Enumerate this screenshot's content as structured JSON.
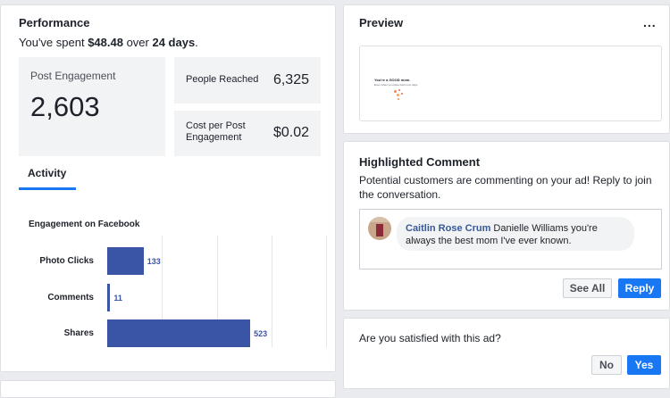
{
  "performance": {
    "title": "Performance",
    "spent_prefix": "You've spent ",
    "spent_amount": "$48.48",
    "spent_mid": " over ",
    "spent_days": "24 days",
    "spent_suffix": ".",
    "post_engagement_label": "Post Engagement",
    "post_engagement_value": "2,603",
    "people_reached_label": "People Reached",
    "people_reached_value": "6,325",
    "cost_label": "Cost per Post Engagement",
    "cost_value": "$0.02",
    "tab_activity": "Activity",
    "chart_title": "Engagement on Facebook"
  },
  "chart_data": {
    "type": "bar",
    "title": "Engagement on Facebook",
    "categories": [
      "Photo Clicks",
      "Comments",
      "Shares"
    ],
    "values": [
      133,
      11,
      523
    ],
    "xlim": [
      0,
      800
    ],
    "orientation": "horizontal",
    "grid": true
  },
  "preview": {
    "title": "Preview",
    "more": "...",
    "thumb_line1": "You're a GOOD mom.",
    "thumb_line2": "Even when you have bad mom days"
  },
  "comment": {
    "title": "Highlighted Comment",
    "description": "Potential customers are commenting on your ad! Reply to join the conversation.",
    "author": "Caitlin Rose Crum",
    "text": " Danielle Williams you're always the best mom I've ever known.",
    "see_all": "See All",
    "reply": "Reply"
  },
  "survey": {
    "question": "Are you satisfied with this ad?",
    "no": "No",
    "yes": "Yes"
  },
  "colors": {
    "bar": "#3b55a6",
    "accent": "#1877f2"
  }
}
